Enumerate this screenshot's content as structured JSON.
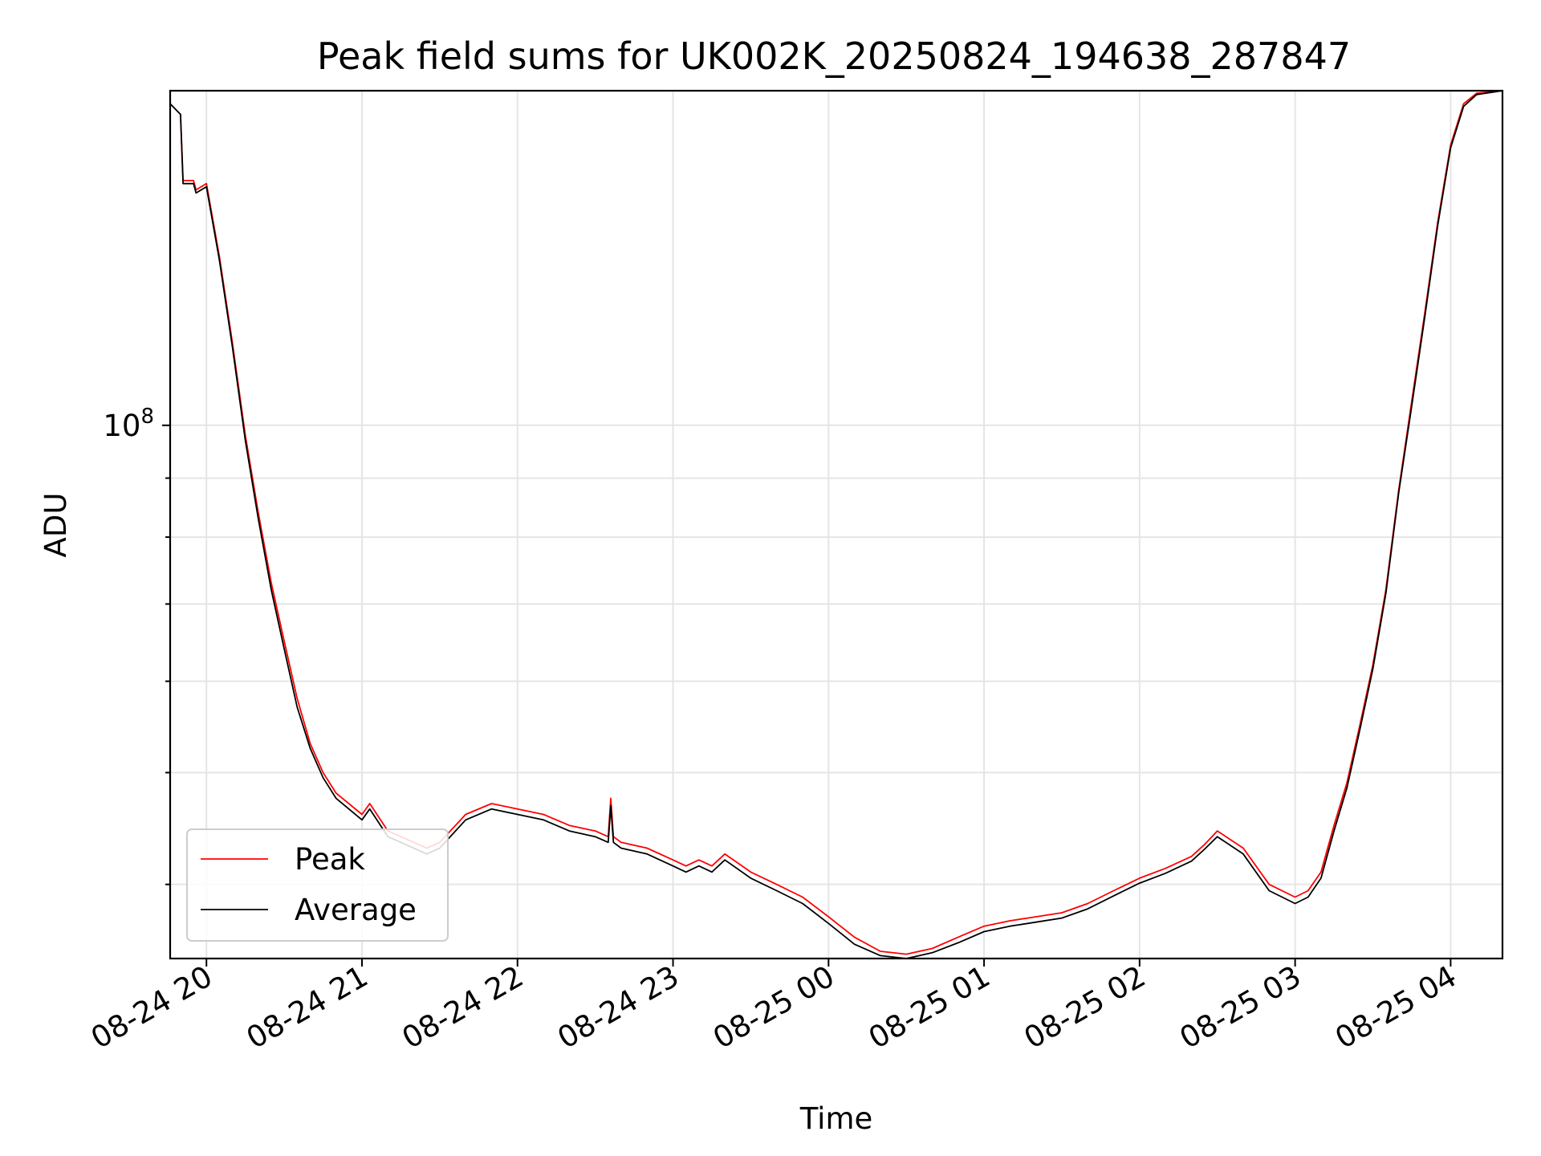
{
  "chart_data": {
    "type": "line",
    "title": "Peak field sums for UK002K_20250824_194638_287847",
    "xlabel": "Time",
    "ylabel": "ADU",
    "yscale": "log",
    "xlim": [
      "2025-08-24 19:46",
      "2025-08-25 04:20"
    ],
    "ylim": [
      34500000,
      195000000
    ],
    "x_ticks": [
      "08-24 20",
      "08-24 21",
      "08-24 22",
      "08-24 23",
      "08-25 00",
      "08-25 01",
      "08-25 02",
      "08-25 03",
      "08-25 04"
    ],
    "y_ticks": [
      {
        "label_base": "10",
        "label_exp": "8",
        "value": 100000000
      }
    ],
    "grid": true,
    "legend": {
      "position": "lower-left",
      "entries": [
        "Peak",
        "Average"
      ]
    },
    "series": [
      {
        "name": "Peak",
        "color": "#ff0000",
        "x": [
          "2025-08-24 19:46",
          "2025-08-24 19:50",
          "2025-08-24 19:51",
          "2025-08-24 19:55",
          "2025-08-24 19:56",
          "2025-08-24 20:00",
          "2025-08-24 20:05",
          "2025-08-24 20:10",
          "2025-08-24 20:15",
          "2025-08-24 20:20",
          "2025-08-24 20:25",
          "2025-08-24 20:30",
          "2025-08-24 20:35",
          "2025-08-24 20:40",
          "2025-08-24 20:45",
          "2025-08-24 20:50",
          "2025-08-24 21:00",
          "2025-08-24 21:03",
          "2025-08-24 21:10",
          "2025-08-24 21:20",
          "2025-08-24 21:25",
          "2025-08-24 21:30",
          "2025-08-24 21:40",
          "2025-08-24 21:50",
          "2025-08-24 22:00",
          "2025-08-24 22:10",
          "2025-08-24 22:20",
          "2025-08-24 22:30",
          "2025-08-24 22:35",
          "2025-08-24 22:36",
          "2025-08-24 22:37",
          "2025-08-24 22:40",
          "2025-08-24 22:50",
          "2025-08-24 23:00",
          "2025-08-24 23:05",
          "2025-08-24 23:10",
          "2025-08-24 23:15",
          "2025-08-24 23:20",
          "2025-08-24 23:30",
          "2025-08-24 23:40",
          "2025-08-24 23:50",
          "2025-08-25 00:00",
          "2025-08-25 00:10",
          "2025-08-25 00:20",
          "2025-08-25 00:30",
          "2025-08-25 00:40",
          "2025-08-25 00:50",
          "2025-08-25 01:00",
          "2025-08-25 01:10",
          "2025-08-25 01:20",
          "2025-08-25 01:30",
          "2025-08-25 01:40",
          "2025-08-25 01:50",
          "2025-08-25 02:00",
          "2025-08-25 02:10",
          "2025-08-25 02:20",
          "2025-08-25 02:25",
          "2025-08-25 02:30",
          "2025-08-25 02:40",
          "2025-08-25 02:50",
          "2025-08-25 03:00",
          "2025-08-25 03:05",
          "2025-08-25 03:10",
          "2025-08-25 03:15",
          "2025-08-25 03:20",
          "2025-08-25 03:25",
          "2025-08-25 03:30",
          "2025-08-25 03:35",
          "2025-08-25 03:40",
          "2025-08-25 03:45",
          "2025-08-25 03:50",
          "2025-08-25 03:55",
          "2025-08-25 04:00",
          "2025-08-25 04:05",
          "2025-08-25 04:10",
          "2025-08-25 04:20"
        ],
        "values": [
          190000000,
          186000000,
          163000000,
          163000000,
          160000000,
          162000000,
          140000000,
          118000000,
          98000000,
          84000000,
          73000000,
          65000000,
          58000000,
          53000000,
          50000000,
          48000000,
          46000000,
          47000000,
          44500000,
          43500000,
          43000000,
          43500000,
          46000000,
          47000000,
          46500000,
          46000000,
          45000000,
          44500000,
          44000000,
          47500000,
          44000000,
          43500000,
          43000000,
          42000000,
          41500000,
          42000000,
          41500000,
          42500000,
          41000000,
          40000000,
          39000000,
          37500000,
          36000000,
          35000000,
          34800000,
          35200000,
          36000000,
          36800000,
          37200000,
          37500000,
          37800000,
          38500000,
          39500000,
          40500000,
          41300000,
          42300000,
          43300000,
          44500000,
          43000000,
          40000000,
          39000000,
          39500000,
          41000000,
          45000000,
          49000000,
          55000000,
          62000000,
          72000000,
          88000000,
          105000000,
          125000000,
          150000000,
          175000000,
          190000000,
          194000000,
          195000000
        ]
      },
      {
        "name": "Average",
        "color": "#000000",
        "x": [
          "2025-08-24 19:46",
          "2025-08-24 19:50",
          "2025-08-24 19:51",
          "2025-08-24 19:55",
          "2025-08-24 19:56",
          "2025-08-24 20:00",
          "2025-08-24 20:05",
          "2025-08-24 20:10",
          "2025-08-24 20:15",
          "2025-08-24 20:20",
          "2025-08-24 20:25",
          "2025-08-24 20:30",
          "2025-08-24 20:35",
          "2025-08-24 20:40",
          "2025-08-24 20:45",
          "2025-08-24 20:50",
          "2025-08-24 21:00",
          "2025-08-24 21:03",
          "2025-08-24 21:10",
          "2025-08-24 21:20",
          "2025-08-24 21:25",
          "2025-08-24 21:30",
          "2025-08-24 21:40",
          "2025-08-24 21:50",
          "2025-08-24 22:00",
          "2025-08-24 22:10",
          "2025-08-24 22:20",
          "2025-08-24 22:30",
          "2025-08-24 22:35",
          "2025-08-24 22:36",
          "2025-08-24 22:37",
          "2025-08-24 22:40",
          "2025-08-24 22:50",
          "2025-08-24 23:00",
          "2025-08-24 23:05",
          "2025-08-24 23:10",
          "2025-08-24 23:15",
          "2025-08-24 23:20",
          "2025-08-24 23:30",
          "2025-08-24 23:40",
          "2025-08-24 23:50",
          "2025-08-25 00:00",
          "2025-08-25 00:10",
          "2025-08-25 00:20",
          "2025-08-25 00:30",
          "2025-08-25 00:40",
          "2025-08-25 00:50",
          "2025-08-25 01:00",
          "2025-08-25 01:10",
          "2025-08-25 01:20",
          "2025-08-25 01:30",
          "2025-08-25 01:40",
          "2025-08-25 01:50",
          "2025-08-25 02:00",
          "2025-08-25 02:10",
          "2025-08-25 02:20",
          "2025-08-25 02:25",
          "2025-08-25 02:30",
          "2025-08-25 02:40",
          "2025-08-25 02:50",
          "2025-08-25 03:00",
          "2025-08-25 03:05",
          "2025-08-25 03:10",
          "2025-08-25 03:15",
          "2025-08-25 03:20",
          "2025-08-25 03:25",
          "2025-08-25 03:30",
          "2025-08-25 03:35",
          "2025-08-25 03:40",
          "2025-08-25 03:45",
          "2025-08-25 03:50",
          "2025-08-25 03:55",
          "2025-08-25 04:00",
          "2025-08-25 04:05",
          "2025-08-25 04:10",
          "2025-08-25 04:20"
        ],
        "values": [
          190000000,
          186000000,
          162000000,
          162000000,
          159000000,
          161000000,
          139000000,
          117000000,
          97000000,
          83000000,
          72000000,
          64000000,
          57000000,
          52500000,
          49500000,
          47500000,
          45500000,
          46500000,
          44000000,
          43000000,
          42500000,
          43000000,
          45500000,
          46500000,
          46000000,
          45500000,
          44500000,
          44000000,
          43500000,
          46800000,
          43500000,
          43000000,
          42500000,
          41500000,
          41000000,
          41500000,
          41000000,
          42000000,
          40500000,
          39500000,
          38500000,
          37000000,
          35500000,
          34700000,
          34500000,
          34900000,
          35600000,
          36400000,
          36800000,
          37100000,
          37400000,
          38100000,
          39100000,
          40100000,
          40900000,
          41900000,
          42900000,
          44000000,
          42500000,
          39500000,
          38500000,
          39000000,
          40500000,
          44500000,
          48500000,
          54500000,
          61500000,
          71500000,
          87500000,
          104000000,
          124000000,
          149000000,
          174000000,
          189000000,
          193500000,
          195000000
        ]
      }
    ]
  }
}
